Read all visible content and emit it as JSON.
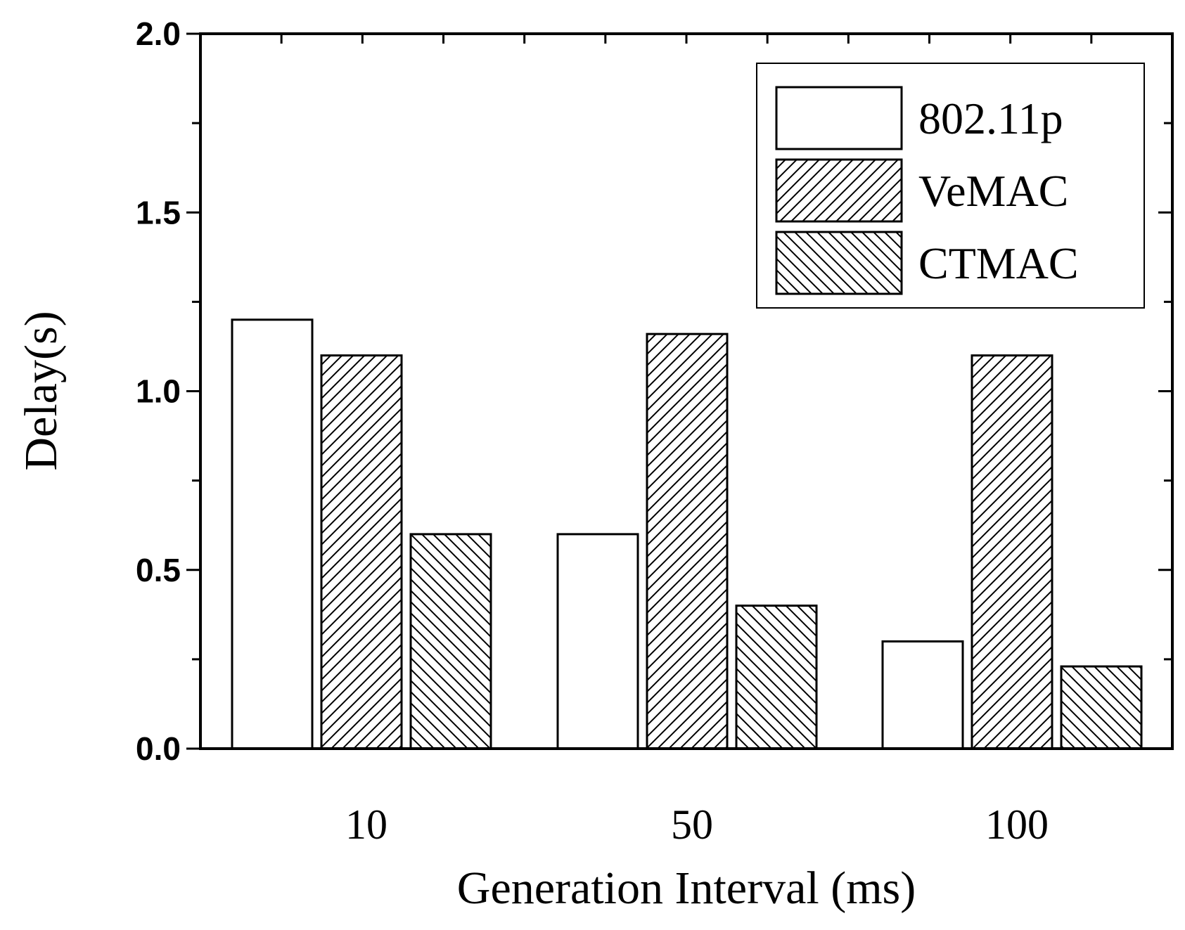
{
  "chart_data": {
    "type": "bar",
    "title": "",
    "xlabel": "Generation Interval (ms)",
    "ylabel": "Delay(s)",
    "categories": [
      "10",
      "50",
      "100"
    ],
    "series": [
      {
        "name": "802.11p",
        "values": [
          1.2,
          0.6,
          0.3
        ],
        "pattern": "none"
      },
      {
        "name": "VeMAC",
        "values": [
          1.1,
          1.16,
          1.1
        ],
        "pattern": "forward-hatch"
      },
      {
        "name": "CTMAC",
        "values": [
          0.6,
          0.4,
          0.23
        ],
        "pattern": "back-hatch"
      }
    ],
    "ylim": [
      0,
      2.0
    ],
    "yticks": [
      "0.0",
      "0.5",
      "1.0",
      "1.5",
      "2.0"
    ],
    "legend_position": "top-right",
    "grid": false,
    "colors": {
      "fill": "#ffffff",
      "stroke": "#000000"
    }
  }
}
